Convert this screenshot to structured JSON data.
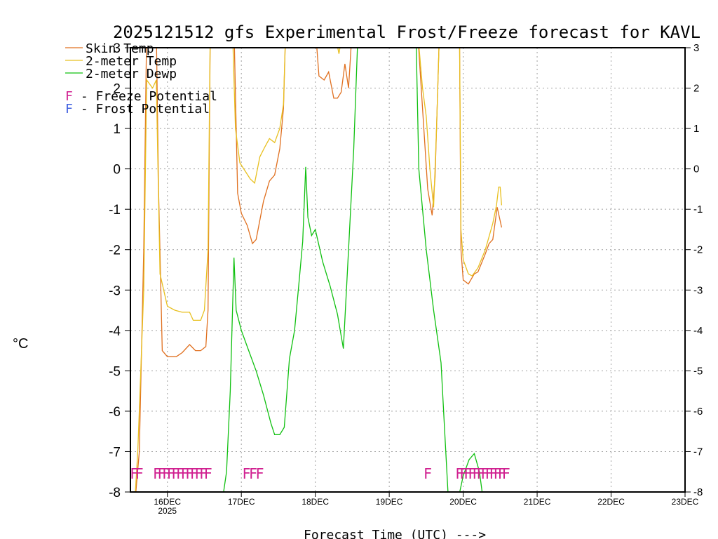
{
  "chart_data": {
    "type": "line",
    "title": "2025121512 gfs Experimental Frost/Freeze forecast for KAVL",
    "ylabel": "°C",
    "xlabel": "Forecast Time (UTC) --->",
    "ylim": [
      -8,
      3
    ],
    "yticks": [
      "-8",
      "-7",
      "-6",
      "-5",
      "-4",
      "-3",
      "-2",
      "-1",
      "0",
      "1",
      "2",
      "3"
    ],
    "xlim": [
      15.5,
      23.0
    ],
    "xticks": [
      {
        "x": 16,
        "label": "16DEC",
        "sub": "2025"
      },
      {
        "x": 17,
        "label": "17DEC",
        "sub": ""
      },
      {
        "x": 18,
        "label": "18DEC",
        "sub": ""
      },
      {
        "x": 19,
        "label": "19DEC",
        "sub": ""
      },
      {
        "x": 20,
        "label": "20DEC",
        "sub": ""
      },
      {
        "x": 21,
        "label": "21DEC",
        "sub": ""
      },
      {
        "x": 22,
        "label": "22DEC",
        "sub": ""
      },
      {
        "x": 23,
        "label": "23DEC",
        "sub": ""
      }
    ],
    "grid": true,
    "legend": [
      {
        "label": "Skin Temp",
        "color": "#e07020"
      },
      {
        "label": "2-meter Temp",
        "color": "#e8c020"
      },
      {
        "label": "2-meter Dewp",
        "color": "#10c010"
      }
    ],
    "potential_legend": [
      {
        "symbol": "F",
        "text": " - Freeze Potential",
        "color": "#d02090"
      },
      {
        "symbol": "F",
        "text": " - Frost Potential",
        "color": "#4060e0"
      }
    ],
    "series": [
      {
        "name": "Skin Temp",
        "color": "#e07020",
        "points": [
          [
            15.55,
            -8.5
          ],
          [
            15.62,
            -7.0
          ],
          [
            15.68,
            -2.0
          ],
          [
            15.72,
            3.5
          ],
          [
            15.85,
            3.5
          ],
          [
            15.88,
            -0.5
          ],
          [
            15.93,
            -4.5
          ],
          [
            16.0,
            -4.65
          ],
          [
            16.12,
            -4.65
          ],
          [
            16.2,
            -4.55
          ],
          [
            16.3,
            -4.35
          ],
          [
            16.38,
            -4.5
          ],
          [
            16.45,
            -4.5
          ],
          [
            16.52,
            -4.4
          ],
          [
            16.55,
            -3.5
          ],
          [
            16.58,
            3.5
          ],
          [
            16.9,
            3.5
          ],
          [
            16.95,
            -0.6
          ],
          [
            17.0,
            -1.1
          ],
          [
            17.08,
            -1.4
          ],
          [
            17.15,
            -1.85
          ],
          [
            17.2,
            -1.75
          ],
          [
            17.3,
            -0.8
          ],
          [
            17.38,
            -0.3
          ],
          [
            17.45,
            -0.15
          ],
          [
            17.52,
            0.5
          ],
          [
            17.57,
            1.5
          ],
          [
            17.6,
            3.5
          ],
          [
            18.0,
            3.5
          ],
          [
            18.05,
            2.3
          ],
          [
            18.12,
            2.2
          ],
          [
            18.18,
            2.4
          ],
          [
            18.25,
            1.75
          ],
          [
            18.3,
            1.75
          ],
          [
            18.35,
            1.9
          ],
          [
            18.4,
            2.6
          ],
          [
            18.45,
            2.0
          ],
          [
            18.5,
            3.5
          ],
          [
            19.38,
            3.5
          ],
          [
            19.45,
            1.5
          ],
          [
            19.52,
            -0.5
          ],
          [
            19.58,
            -1.15
          ],
          [
            19.62,
            -0.2
          ],
          [
            19.68,
            3.5
          ],
          [
            19.95,
            3.5
          ],
          [
            19.97,
            -2.0
          ],
          [
            20.0,
            -2.75
          ],
          [
            20.07,
            -2.85
          ],
          [
            20.15,
            -2.6
          ],
          [
            20.2,
            -2.55
          ],
          [
            20.3,
            -2.1
          ],
          [
            20.35,
            -1.85
          ],
          [
            20.4,
            -1.75
          ],
          [
            20.46,
            -0.95
          ],
          [
            20.52,
            -1.45
          ]
        ]
      },
      {
        "name": "2-meter Temp",
        "color": "#e8c020",
        "points": [
          [
            15.55,
            -8.5
          ],
          [
            15.6,
            -7.0
          ],
          [
            15.68,
            -3.0
          ],
          [
            15.72,
            2.2
          ],
          [
            15.8,
            2.0
          ],
          [
            15.85,
            2.2
          ],
          [
            15.9,
            -2.6
          ],
          [
            16.0,
            -3.4
          ],
          [
            16.1,
            -3.5
          ],
          [
            16.2,
            -3.55
          ],
          [
            16.3,
            -3.55
          ],
          [
            16.35,
            -3.75
          ],
          [
            16.45,
            -3.75
          ],
          [
            16.5,
            -3.5
          ],
          [
            16.55,
            -2.0
          ],
          [
            16.58,
            3.5
          ],
          [
            16.88,
            3.5
          ],
          [
            16.92,
            1.0
          ],
          [
            16.98,
            0.15
          ],
          [
            17.05,
            -0.05
          ],
          [
            17.12,
            -0.25
          ],
          [
            17.18,
            -0.35
          ],
          [
            17.25,
            0.3
          ],
          [
            17.32,
            0.55
          ],
          [
            17.38,
            0.75
          ],
          [
            17.45,
            0.65
          ],
          [
            17.52,
            1.0
          ],
          [
            17.57,
            1.6
          ],
          [
            17.6,
            3.5
          ],
          [
            18.25,
            3.5
          ],
          [
            18.32,
            2.85
          ],
          [
            18.38,
            3.5
          ],
          [
            19.38,
            3.5
          ],
          [
            19.45,
            2.0
          ],
          [
            19.5,
            1.3
          ],
          [
            19.55,
            0.0
          ],
          [
            19.6,
            -0.95
          ],
          [
            19.64,
            1.0
          ],
          [
            19.68,
            3.5
          ],
          [
            19.95,
            3.5
          ],
          [
            19.97,
            -1.5
          ],
          [
            20.0,
            -2.25
          ],
          [
            20.07,
            -2.6
          ],
          [
            20.12,
            -2.65
          ],
          [
            20.2,
            -2.45
          ],
          [
            20.3,
            -2.0
          ],
          [
            20.4,
            -1.35
          ],
          [
            20.45,
            -0.9
          ],
          [
            20.48,
            -0.45
          ],
          [
            20.5,
            -0.45
          ],
          [
            20.52,
            -0.9
          ]
        ]
      },
      {
        "name": "2-meter Dewp",
        "color": "#10c010",
        "points": [
          [
            16.72,
            -8.5
          ],
          [
            16.8,
            -7.5
          ],
          [
            16.85,
            -5.5
          ],
          [
            16.9,
            -2.2
          ],
          [
            16.93,
            -3.5
          ],
          [
            17.0,
            -4.0
          ],
          [
            17.1,
            -4.5
          ],
          [
            17.2,
            -5.0
          ],
          [
            17.3,
            -5.6
          ],
          [
            17.4,
            -6.3
          ],
          [
            17.45,
            -6.58
          ],
          [
            17.52,
            -6.58
          ],
          [
            17.58,
            -6.4
          ],
          [
            17.65,
            -4.7
          ],
          [
            17.72,
            -4.0
          ],
          [
            17.78,
            -2.8
          ],
          [
            17.83,
            -1.8
          ],
          [
            17.87,
            0.05
          ],
          [
            17.9,
            -1.2
          ],
          [
            17.95,
            -1.65
          ],
          [
            18.0,
            -1.5
          ],
          [
            18.1,
            -2.3
          ],
          [
            18.2,
            -2.9
          ],
          [
            18.3,
            -3.6
          ],
          [
            18.38,
            -4.45
          ],
          [
            18.45,
            -2.0
          ],
          [
            18.52,
            0.5
          ],
          [
            18.58,
            3.5
          ],
          [
            19.36,
            3.5
          ],
          [
            19.4,
            0.0
          ],
          [
            19.45,
            -1.0
          ],
          [
            19.5,
            -2.0
          ],
          [
            19.6,
            -3.5
          ],
          [
            19.7,
            -4.8
          ],
          [
            19.75,
            -6.5
          ],
          [
            19.8,
            -8.2
          ],
          [
            19.93,
            -8.2
          ],
          [
            20.0,
            -7.6
          ],
          [
            20.08,
            -7.2
          ],
          [
            20.15,
            -7.05
          ],
          [
            20.22,
            -7.5
          ],
          [
            20.27,
            -8.2
          ]
        ]
      }
    ],
    "freeze_marks": [
      {
        "start": 15.55,
        "end": 15.62,
        "count": 2
      },
      {
        "start": 15.86,
        "end": 16.55,
        "count": 12
      },
      {
        "start": 17.07,
        "end": 17.25,
        "count": 3
      },
      {
        "start": 19.52,
        "end": 19.52,
        "count": 1
      },
      {
        "start": 19.95,
        "end": 20.58,
        "count": 12
      }
    ],
    "mark_level": -7.55,
    "mark_symbol": "F",
    "mark_color": "#d02090"
  }
}
